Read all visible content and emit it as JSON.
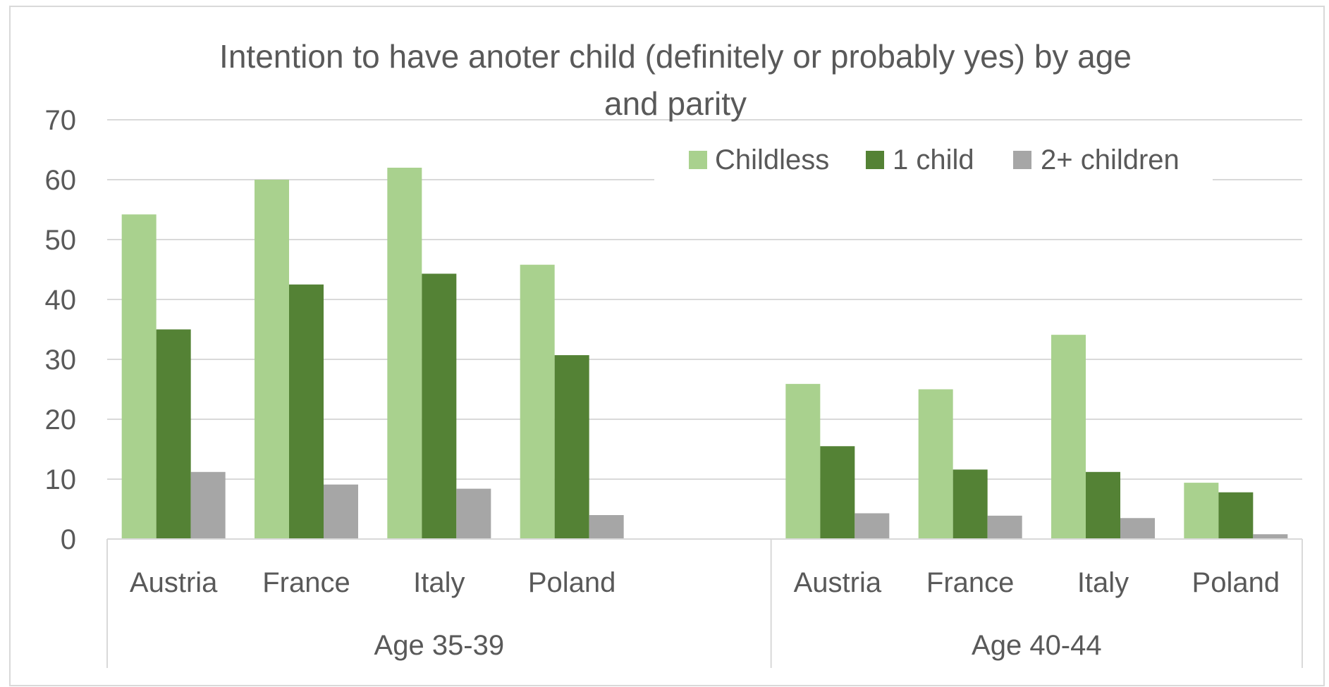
{
  "chart_data": {
    "type": "bar",
    "title": "Intention to have anoter child (definitely or probably yes) by age and parity",
    "title_lines": [
      "Intention to have anoter child (definitely or probably yes) by age",
      "and parity"
    ],
    "xlabel": "",
    "ylabel": "",
    "ylim": [
      0,
      70
    ],
    "yticks": [
      0,
      10,
      20,
      30,
      40,
      50,
      60,
      70
    ],
    "grid": true,
    "legend_position": "top-right",
    "groups": [
      {
        "label": "Age 35-39",
        "categories": [
          "Austria",
          "France",
          "Italy",
          "Poland"
        ]
      },
      {
        "label": "Age 40-44",
        "categories": [
          "Austria",
          "France",
          "Italy",
          "Poland"
        ]
      }
    ],
    "categories": [
      "Austria",
      "France",
      "Italy",
      "Poland",
      "",
      "Austria",
      "France",
      "Italy",
      "Poland"
    ],
    "series": [
      {
        "name": "Childless",
        "color": "#A9D18E",
        "values": [
          54.2,
          60.0,
          62.0,
          45.8,
          null,
          25.9,
          25.0,
          34.1,
          9.4
        ]
      },
      {
        "name": "1 child",
        "color": "#548235",
        "values": [
          35.0,
          42.5,
          44.3,
          30.7,
          null,
          15.5,
          11.6,
          11.2,
          7.8
        ]
      },
      {
        "name": "2+ children",
        "color": "#A6A6A6",
        "values": [
          11.2,
          9.1,
          8.4,
          4.0,
          null,
          4.3,
          3.9,
          3.5,
          0.8
        ]
      }
    ]
  }
}
